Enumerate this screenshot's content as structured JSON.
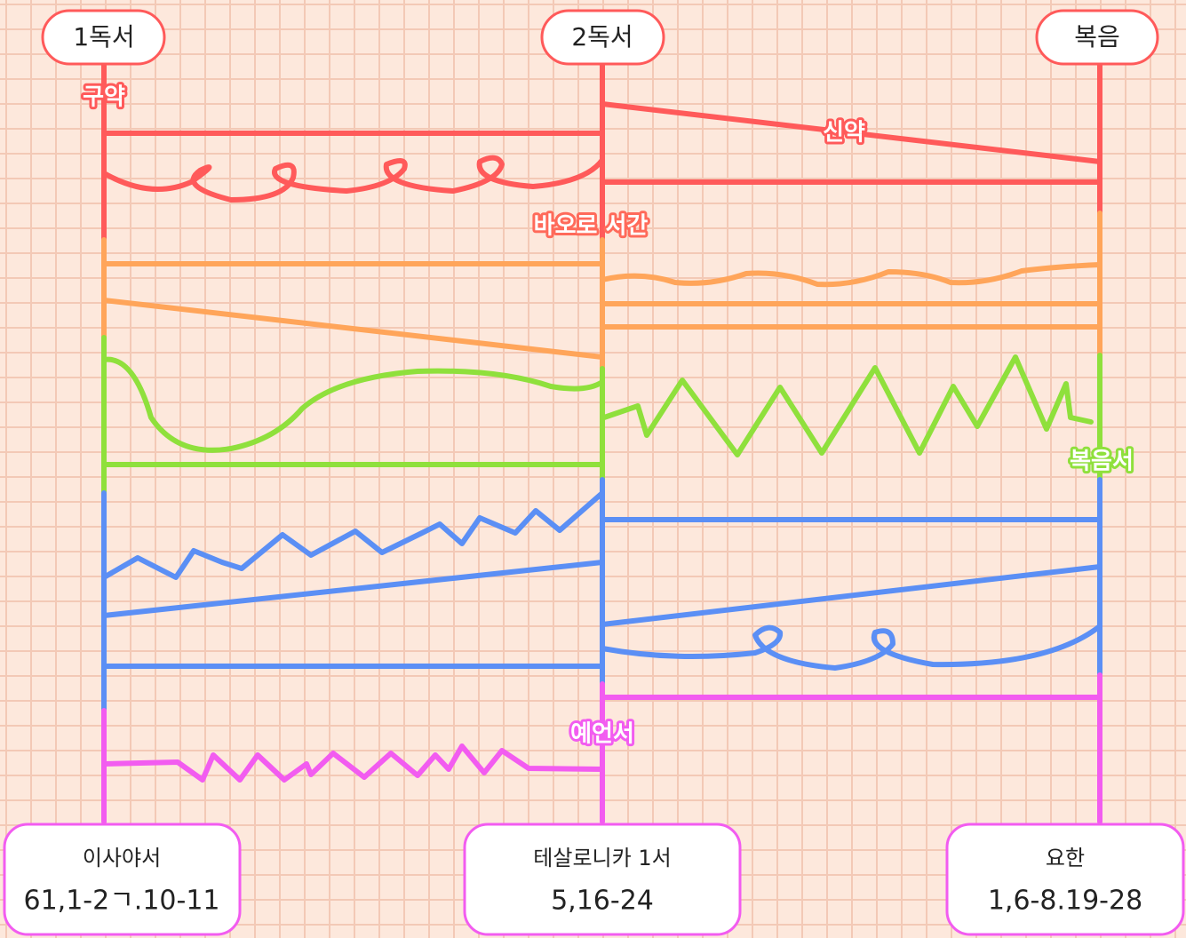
{
  "headers": [
    "1독서",
    "2독서",
    "복음"
  ],
  "section_labels": {
    "old_testament": "구약",
    "new_testament": "신약",
    "epistles": "바오로 서간",
    "gospels": "복음서",
    "prophets": "예언서"
  },
  "readings": [
    {
      "book": "이사야서",
      "reference": "61,1-2ㄱ.10-11"
    },
    {
      "book": "테살로니카 1서",
      "reference": "5,16-24"
    },
    {
      "book": "요한",
      "reference": "1,6-8.19-28"
    }
  ]
}
